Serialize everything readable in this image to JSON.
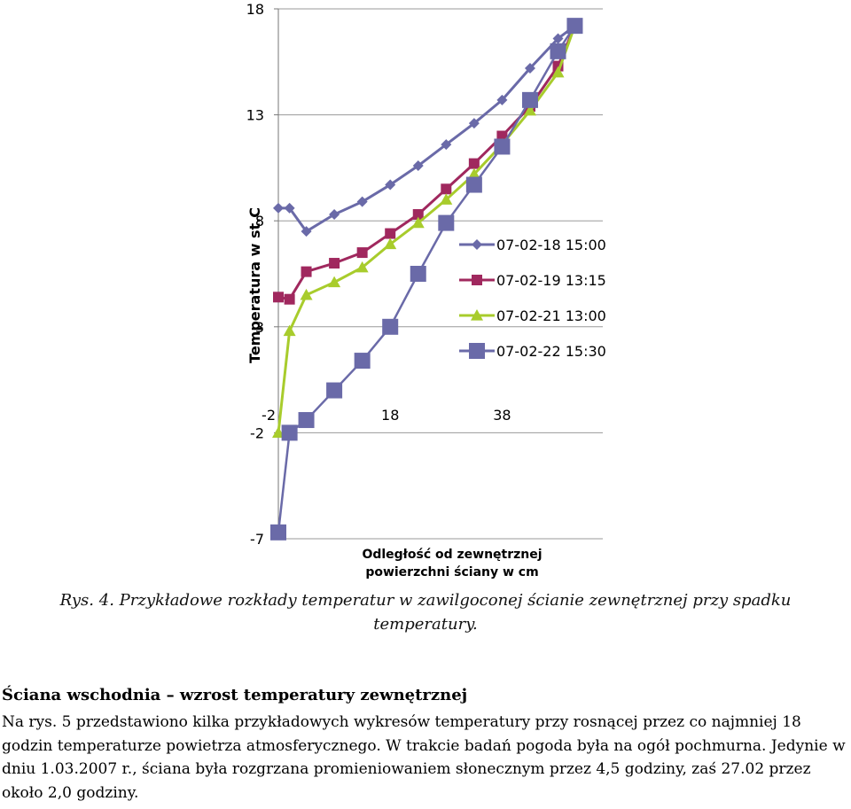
{
  "figure": {
    "caption": "Rys. 4. Przykładowe rozkłady temperatur w zawilgoconej ścianie zewnętrznej przy spadku temperatury."
  },
  "chart_data": {
    "type": "line",
    "ylabel": "Temperatura w st.C",
    "xlabel_line1": "Odległość od zewnętrznej",
    "xlabel_line2": "powierzchni ściany w cm",
    "ylim": [
      -7,
      18
    ],
    "y_ticks": [
      "18",
      "13",
      "8",
      "3",
      "-2",
      "-7"
    ],
    "x_ticks": [
      "-2",
      "18",
      "38"
    ],
    "grid": true,
    "legend_position": "right",
    "series": [
      {
        "name": "07-02-18 15:00",
        "color": "#6a6aa8",
        "marker": "diamond",
        "x": [
          -2,
          0,
          3,
          8,
          13,
          18,
          23,
          28,
          33,
          38,
          43,
          48,
          51
        ],
        "y": [
          8.6,
          8.6,
          7.5,
          8.3,
          8.9,
          9.7,
          10.6,
          11.6,
          12.6,
          13.7,
          15.2,
          16.6,
          17.2
        ]
      },
      {
        "name": "07-02-19 13:15",
        "color": "#a0285e",
        "marker": "square",
        "x": [
          -2,
          0,
          3,
          8,
          13,
          18,
          23,
          28,
          33,
          38,
          43,
          48,
          51
        ],
        "y": [
          4.4,
          4.3,
          5.6,
          6.0,
          6.5,
          7.4,
          8.3,
          9.5,
          10.7,
          12.0,
          13.4,
          15.3,
          17.2
        ]
      },
      {
        "name": "07-02-21 13:00",
        "color": "#a8cc2c",
        "marker": "triangle",
        "x": [
          -2,
          0,
          3,
          8,
          13,
          18,
          23,
          28,
          33,
          38,
          43,
          48,
          51
        ],
        "y": [
          -2.0,
          2.8,
          4.5,
          5.1,
          5.8,
          6.9,
          7.9,
          9.0,
          10.2,
          11.6,
          13.2,
          15.0,
          17.2
        ]
      },
      {
        "name": "07-02-22 15:30",
        "color": "#6a6aa8",
        "marker": "bigsquare",
        "x": [
          -2,
          0,
          3,
          8,
          13,
          18,
          23,
          28,
          33,
          38,
          43,
          48,
          51
        ],
        "y": [
          -6.7,
          -2.0,
          -1.4,
          0.0,
          1.4,
          3.0,
          5.5,
          7.9,
          9.7,
          11.5,
          13.7,
          16.0,
          17.2
        ]
      }
    ]
  },
  "section": {
    "heading": "Ściana wschodnia – wzrost temperatury zewnętrznej",
    "paragraph": "Na rys. 5 przedstawiono kilka przykładowych wykresów temperatury przy rosnącej przez co najmniej 18 godzin temperaturze powietrza atmosferycznego. W trakcie badań pogoda była na ogół pochmurna. Jedynie w dniu 1.03.2007 r., ściana była rozgrzana promieniowaniem słonecznym przez 4,5 godziny, zaś 27.02 przez około 2,0 godziny."
  }
}
